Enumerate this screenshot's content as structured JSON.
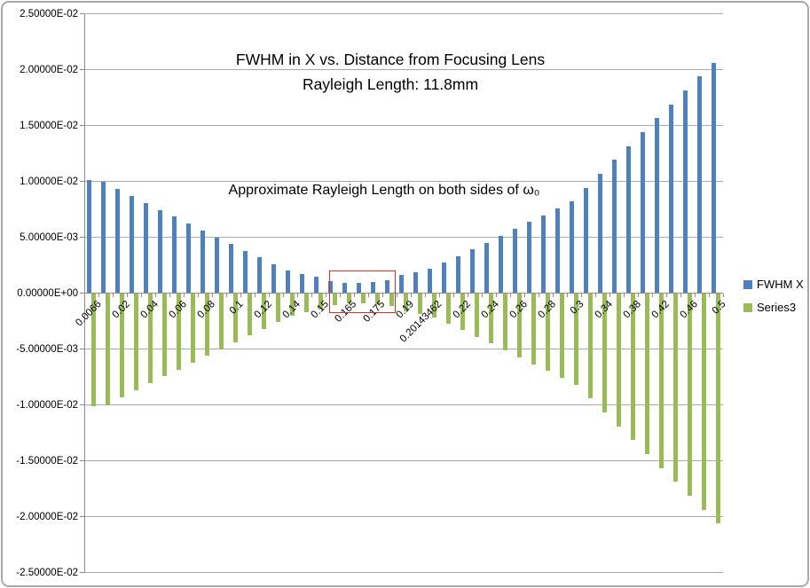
{
  "chart": {
    "title_line1": "FWHM in X vs. Distance from Focusing Lens",
    "title_line2": "Rayleigh Length: 11.8mm",
    "annotation": "Approximate Rayleigh Length on both sides of ω₀",
    "legend": [
      {
        "label": "FWHM X",
        "color": "#4F81BD"
      },
      {
        "label": "Series3",
        "color": "#9BBB59"
      }
    ],
    "highlight_box_color": "#D0342C",
    "y_axis": {
      "tick_labels": [
        "2.50000E-02",
        "2.00000E-02",
        "1.50000E-02",
        "1.00000E-02",
        "5.00000E-03",
        "0.00000E+00",
        "-5.00000E-03",
        "-1.00000E-02",
        "-1.50000E-02",
        "-2.00000E-02",
        "-2.50000E-02"
      ]
    },
    "x_axis": {
      "label_interval": 2
    }
  },
  "chart_data": {
    "type": "bar",
    "title": "FWHM in X vs. Distance from Focusing Lens",
    "subtitle": "Rayleigh Length: 11.8mm",
    "xlabel": "",
    "ylabel": "",
    "ylim": [
      -0.025,
      0.025
    ],
    "y_step": 0.005,
    "grid": true,
    "legend_position": "right",
    "categories": [
      "0.0066",
      "0.01",
      "0.02",
      "0.03",
      "0.04",
      "0.05",
      "0.06",
      "0.07",
      "0.08",
      "0.09",
      "0.1",
      "0.11",
      "0.12",
      "0.13",
      "0.14",
      "0.145",
      "0.15",
      "0.16",
      "0.165",
      "0.17",
      "0.175",
      "0.18",
      "0.19",
      "0.195",
      "0.20143462",
      "0.21",
      "0.22",
      "0.23",
      "0.24",
      "0.25",
      "0.26",
      "0.27",
      "0.28",
      "0.29",
      "0.3",
      "0.32",
      "0.34",
      "0.36",
      "0.38",
      "0.4",
      "0.42",
      "0.44",
      "0.46",
      "0.48",
      "0.5"
    ],
    "series": [
      {
        "name": "FWHM X",
        "color": "#4F81BD",
        "values": [
          0.01014,
          0.00993,
          0.00931,
          0.0087,
          0.00807,
          0.00745,
          0.00684,
          0.00622,
          0.00561,
          0.005,
          0.00438,
          0.00378,
          0.00318,
          0.00259,
          0.00202,
          0.00174,
          0.00149,
          0.00106,
          0.00093,
          0.0009,
          0.00097,
          0.00113,
          0.00159,
          0.00185,
          0.00221,
          0.0027,
          0.0033,
          0.0039,
          0.00451,
          0.00512,
          0.00573,
          0.00635,
          0.00696,
          0.00758,
          0.0082,
          0.00943,
          0.01068,
          0.01191,
          0.01315,
          0.0144,
          0.01564,
          0.01688,
          0.01812,
          0.01937,
          0.02061
        ]
      },
      {
        "name": "Series3",
        "color": "#9BBB59",
        "values": [
          -0.01014,
          -0.00993,
          -0.00931,
          -0.0087,
          -0.00807,
          -0.00745,
          -0.00684,
          -0.00622,
          -0.00561,
          -0.005,
          -0.00438,
          -0.00378,
          -0.00318,
          -0.00259,
          -0.00202,
          -0.00174,
          -0.00149,
          -0.00106,
          -0.00093,
          -0.0009,
          -0.00097,
          -0.00113,
          -0.00159,
          -0.00185,
          -0.00221,
          -0.0027,
          -0.0033,
          -0.0039,
          -0.00451,
          -0.00512,
          -0.00573,
          -0.00635,
          -0.00696,
          -0.00758,
          -0.0082,
          -0.00943,
          -0.01068,
          -0.01191,
          -0.01315,
          -0.0144,
          -0.01564,
          -0.01688,
          -0.01812,
          -0.01937,
          -0.02061
        ]
      }
    ],
    "annotations": [
      {
        "text": "Approximate Rayleigh Length on both sides of ω₀",
        "type": "text"
      },
      {
        "type": "rect-highlight",
        "from_category": "0.16",
        "to_category": "0.18",
        "note": "red box marking waist region"
      }
    ]
  }
}
